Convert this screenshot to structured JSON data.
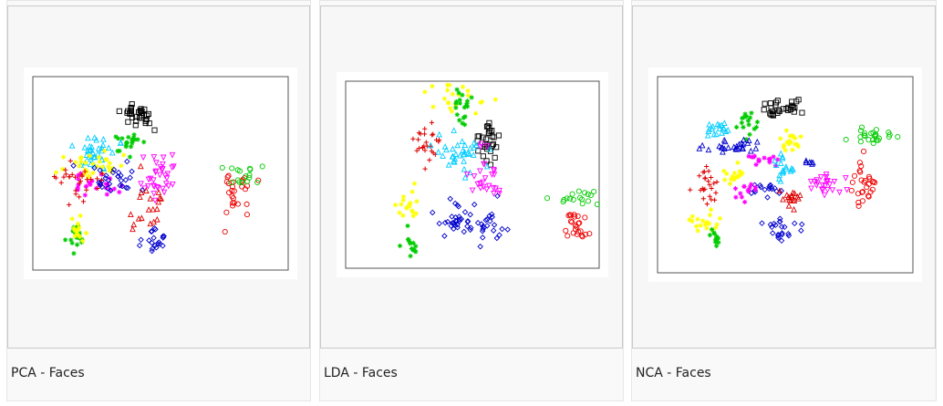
{
  "gallery": {
    "items": [
      {
        "caption": "PCA - Faces",
        "seed": 11
      },
      {
        "caption": "LDA - Faces",
        "seed": 23
      },
      {
        "caption": "NCA - Faces",
        "seed": 37
      }
    ]
  },
  "chart_data": [
    {
      "type": "scatter",
      "colors": [
        "#000000",
        "#00cc00",
        "#00ccff",
        "#ffff00",
        "#ff00ff",
        "#0000cc",
        "#dd0000",
        "#ee0000"
      ],
      "markers": [
        "square",
        "star",
        "triangle",
        "star",
        "triangle-down",
        "diamond",
        "plus",
        "circle"
      ],
      "xlim": [
        0,
        280
      ],
      "ylim": [
        0,
        220
      ],
      "clusters": [
        {
          "color": "#000000",
          "marker": "square",
          "cx": 115,
          "cy": 45,
          "sx": 8,
          "sy": 8,
          "n": 32
        },
        {
          "color": "#00cc00",
          "marker": "star",
          "cx": 105,
          "cy": 75,
          "sx": 7,
          "sy": 6,
          "n": 20
        },
        {
          "color": "#00cc00",
          "marker": "star",
          "cx": 48,
          "cy": 185,
          "sx": 5,
          "sy": 10,
          "n": 16
        },
        {
          "color": "#00ccff",
          "marker": "triangle",
          "cx": 70,
          "cy": 85,
          "sx": 12,
          "sy": 10,
          "n": 36
        },
        {
          "color": "#ffff00",
          "marker": "star",
          "cx": 65,
          "cy": 100,
          "sx": 14,
          "sy": 10,
          "n": 34
        },
        {
          "color": "#ffff00",
          "marker": "star",
          "cx": 48,
          "cy": 175,
          "sx": 5,
          "sy": 8,
          "n": 14
        },
        {
          "color": "#ff00ff",
          "marker": "triangle-down",
          "cx": 140,
          "cy": 115,
          "sx": 12,
          "sy": 14,
          "n": 34
        },
        {
          "color": "#ff00ff",
          "marker": "star",
          "cx": 70,
          "cy": 125,
          "sx": 16,
          "sy": 6,
          "n": 26
        },
        {
          "color": "#0000cc",
          "marker": "diamond",
          "cx": 85,
          "cy": 115,
          "sx": 15,
          "sy": 8,
          "n": 30
        },
        {
          "color": "#0000cc",
          "marker": "diamond",
          "cx": 133,
          "cy": 190,
          "sx": 8,
          "sy": 8,
          "n": 20
        },
        {
          "color": "#dd0000",
          "marker": "plus",
          "cx": 50,
          "cy": 120,
          "sx": 12,
          "sy": 10,
          "n": 28
        },
        {
          "color": "#dd0000",
          "marker": "triangle",
          "cx": 125,
          "cy": 150,
          "sx": 10,
          "sy": 16,
          "n": 20
        },
        {
          "color": "#ee0000",
          "marker": "circle",
          "cx": 225,
          "cy": 130,
          "sx": 8,
          "sy": 16,
          "n": 26
        },
        {
          "color": "#00cc00",
          "marker": "circle",
          "cx": 235,
          "cy": 110,
          "sx": 12,
          "sy": 8,
          "n": 16
        }
      ]
    },
    {
      "type": "scatter",
      "colors": [
        "#000000",
        "#00cc00",
        "#00ccff",
        "#ffff00",
        "#ff00ff",
        "#0000cc",
        "#dd0000",
        "#ee0000"
      ],
      "markers": [
        "square",
        "star",
        "triangle",
        "star",
        "triangle-down",
        "diamond",
        "plus",
        "circle"
      ],
      "xlim": [
        0,
        270
      ],
      "ylim": [
        0,
        215
      ],
      "clusters": [
        {
          "color": "#ffff00",
          "marker": "star",
          "cx": 125,
          "cy": 15,
          "sx": 15,
          "sy": 10,
          "n": 24
        },
        {
          "color": "#00cc00",
          "marker": "star",
          "cx": 125,
          "cy": 30,
          "sx": 6,
          "sy": 8,
          "n": 20
        },
        {
          "color": "#000000",
          "marker": "square",
          "cx": 148,
          "cy": 70,
          "sx": 6,
          "sy": 14,
          "n": 30
        },
        {
          "color": "#dd0000",
          "marker": "plus",
          "cx": 85,
          "cy": 70,
          "sx": 8,
          "sy": 10,
          "n": 26
        },
        {
          "color": "#00ccff",
          "marker": "triangle",
          "cx": 120,
          "cy": 80,
          "sx": 14,
          "sy": 12,
          "n": 36
        },
        {
          "color": "#ff00ff",
          "marker": "triangle-down",
          "cx": 150,
          "cy": 115,
          "sx": 10,
          "sy": 16,
          "n": 26
        },
        {
          "color": "#ffff00",
          "marker": "star",
          "cx": 68,
          "cy": 140,
          "sx": 6,
          "sy": 10,
          "n": 18
        },
        {
          "color": "#00cc00",
          "marker": "star",
          "cx": 68,
          "cy": 190,
          "sx": 4,
          "sy": 8,
          "n": 14
        },
        {
          "color": "#0000cc",
          "marker": "diamond",
          "cx": 115,
          "cy": 160,
          "sx": 12,
          "sy": 12,
          "n": 30
        },
        {
          "color": "#0000cc",
          "marker": "diamond",
          "cx": 150,
          "cy": 165,
          "sx": 10,
          "sy": 12,
          "n": 26
        },
        {
          "color": "#ee0000",
          "marker": "circle",
          "cx": 245,
          "cy": 165,
          "sx": 6,
          "sy": 10,
          "n": 24
        },
        {
          "color": "#00cc00",
          "marker": "circle",
          "cx": 250,
          "cy": 135,
          "sx": 12,
          "sy": 6,
          "n": 18
        }
      ]
    },
    {
      "type": "scatter",
      "colors": [
        "#000000",
        "#00cc00",
        "#00ccff",
        "#ffff00",
        "#ff00ff",
        "#0000cc",
        "#dd0000",
        "#ee0000"
      ],
      "markers": [
        "square",
        "star",
        "triangle",
        "star",
        "triangle-down",
        "diamond",
        "plus",
        "circle"
      ],
      "xlim": [
        0,
        285
      ],
      "ylim": [
        0,
        225
      ],
      "clusters": [
        {
          "color": "#000000",
          "marker": "square",
          "cx": 140,
          "cy": 35,
          "sx": 10,
          "sy": 5,
          "n": 30
        },
        {
          "color": "#00cc00",
          "marker": "star",
          "cx": 100,
          "cy": 55,
          "sx": 5,
          "sy": 7,
          "n": 16
        },
        {
          "color": "#00ccff",
          "marker": "triangle",
          "cx": 70,
          "cy": 60,
          "sx": 8,
          "sy": 6,
          "n": 18
        },
        {
          "color": "#ffff00",
          "marker": "star",
          "cx": 148,
          "cy": 75,
          "sx": 8,
          "sy": 6,
          "n": 18
        },
        {
          "color": "#00cc00",
          "marker": "circle",
          "cx": 240,
          "cy": 70,
          "sx": 16,
          "sy": 5,
          "n": 24
        },
        {
          "color": "#0000cc",
          "marker": "triangle",
          "cx": 80,
          "cy": 80,
          "sx": 14,
          "sy": 4,
          "n": 28
        },
        {
          "color": "#ff00ff",
          "marker": "star",
          "cx": 115,
          "cy": 95,
          "sx": 8,
          "sy": 4,
          "n": 16
        },
        {
          "color": "#00ccff",
          "marker": "triangle",
          "cx": 140,
          "cy": 105,
          "sx": 6,
          "sy": 8,
          "n": 18
        },
        {
          "color": "#0000cc",
          "marker": "triangle",
          "cx": 168,
          "cy": 98,
          "sx": 3,
          "sy": 2,
          "n": 6
        },
        {
          "color": "#ffff00",
          "marker": "star",
          "cx": 85,
          "cy": 115,
          "sx": 6,
          "sy": 8,
          "n": 16
        },
        {
          "color": "#dd0000",
          "marker": "plus",
          "cx": 55,
          "cy": 125,
          "sx": 6,
          "sy": 12,
          "n": 24
        },
        {
          "color": "#0000cc",
          "marker": "diamond",
          "cx": 120,
          "cy": 130,
          "sx": 8,
          "sy": 4,
          "n": 18
        },
        {
          "color": "#ff00ff",
          "marker": "triangle-down",
          "cx": 190,
          "cy": 125,
          "sx": 10,
          "sy": 6,
          "n": 24
        },
        {
          "color": "#ff00ff",
          "marker": "star",
          "cx": 100,
          "cy": 135,
          "sx": 8,
          "sy": 5,
          "n": 14
        },
        {
          "color": "#dd0000",
          "marker": "triangle",
          "cx": 150,
          "cy": 140,
          "sx": 6,
          "sy": 8,
          "n": 18
        },
        {
          "color": "#ee0000",
          "marker": "circle",
          "cx": 230,
          "cy": 125,
          "sx": 7,
          "sy": 14,
          "n": 28
        },
        {
          "color": "#ffff00",
          "marker": "star",
          "cx": 52,
          "cy": 165,
          "sx": 8,
          "sy": 6,
          "n": 20
        },
        {
          "color": "#00cc00",
          "marker": "star",
          "cx": 65,
          "cy": 187,
          "sx": 3,
          "sy": 4,
          "n": 12
        },
        {
          "color": "#0000cc",
          "marker": "diamond",
          "cx": 138,
          "cy": 175,
          "sx": 10,
          "sy": 6,
          "n": 22
        }
      ]
    }
  ]
}
